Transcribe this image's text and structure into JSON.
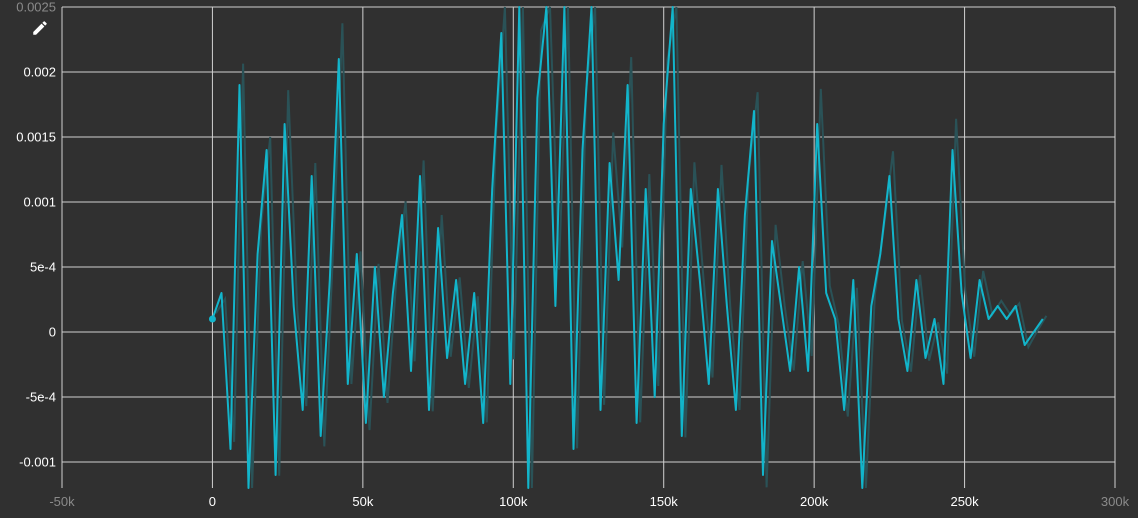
{
  "toolbar": {
    "edit_icon": "pencil-icon"
  },
  "chart_data": {
    "type": "line",
    "title": "",
    "xlabel": "",
    "ylabel": "",
    "xlim": [
      -50000,
      300000
    ],
    "ylim": [
      -0.0012,
      0.0025
    ],
    "x_ticks": [
      {
        "value": -50000,
        "label": "-50k"
      },
      {
        "value": 0,
        "label": "0"
      },
      {
        "value": 50000,
        "label": "50k"
      },
      {
        "value": 100000,
        "label": "100k"
      },
      {
        "value": 150000,
        "label": "150k"
      },
      {
        "value": 200000,
        "label": "200k"
      },
      {
        "value": 250000,
        "label": "250k"
      },
      {
        "value": 300000,
        "label": "300k"
      }
    ],
    "y_ticks": [
      {
        "value": 0.0025,
        "label": "0.0025"
      },
      {
        "value": 0.002,
        "label": "0.002"
      },
      {
        "value": 0.0015,
        "label": "0.0015"
      },
      {
        "value": 0.001,
        "label": "0.001"
      },
      {
        "value": 0.0005,
        "label": "5e-4"
      },
      {
        "value": 0,
        "label": "0"
      },
      {
        "value": -0.0005,
        "label": "-5e-4"
      },
      {
        "value": -0.001,
        "label": "-0.001"
      }
    ],
    "grid": true,
    "colors": {
      "series": "#12b5cb",
      "raw": "#2a5257",
      "grid": "#d0d0d0",
      "background": "#303030"
    },
    "series": [
      {
        "x": [
          0,
          3000,
          6000,
          9000,
          12000,
          15000,
          18000,
          21000,
          24000,
          27000,
          30000,
          33000,
          36000,
          39000,
          42000,
          45000,
          48000,
          51000,
          54000,
          57000,
          60000,
          63000,
          66000,
          69000,
          72000,
          75000,
          78000,
          81000,
          84000,
          87000,
          90000,
          93000,
          96000,
          99000,
          102000,
          105000,
          108000,
          111000,
          114000,
          117000,
          120000,
          123000,
          126000,
          129000,
          132000,
          135000,
          138000,
          141000,
          144000,
          147000,
          150000,
          153000,
          156000,
          159000,
          162000,
          165000,
          168000,
          171000,
          174000,
          177000,
          180000,
          183000,
          186000,
          189000,
          192000,
          195000,
          198000,
          201000,
          204000,
          207000,
          210000,
          213000,
          216000,
          219000,
          222000,
          225000,
          228000,
          231000,
          234000,
          237000,
          240000,
          243000,
          246000,
          249000,
          252000,
          255000,
          258000,
          261000,
          264000,
          267000,
          270000,
          273000,
          276000
        ],
        "y": [
          0.0001,
          0.0003,
          -0.0009,
          0.0019,
          -0.0012,
          0.0006,
          0.0014,
          -0.0011,
          0.0016,
          0.0002,
          -0.0006,
          0.0012,
          -0.0008,
          0.0004,
          0.0021,
          -0.0004,
          0.0006,
          -0.0007,
          0.0005,
          -0.0005,
          0.0003,
          0.0009,
          -0.0003,
          0.0012,
          -0.0006,
          0.0008,
          -0.0002,
          0.0004,
          -0.0004,
          0.0003,
          -0.0007,
          0.0011,
          0.0023,
          -0.0004,
          0.0025,
          -0.0012,
          0.0018,
          0.0025,
          0.0002,
          0.0025,
          -0.0009,
          0.0014,
          0.0025,
          -0.0006,
          0.0013,
          0.0004,
          0.0019,
          -0.0007,
          0.0011,
          -0.0005,
          0.0016,
          0.0025,
          -0.0008,
          0.0011,
          0.0004,
          -0.0004,
          0.0011,
          0.0002,
          -0.0006,
          0.0009,
          0.0017,
          -0.0011,
          0.0007,
          0.0002,
          -0.0003,
          0.0005,
          -0.0003,
          0.0016,
          0.0003,
          0.0001,
          -0.0006,
          0.0004,
          -0.0012,
          0.0002,
          0.0006,
          0.0012,
          0.0001,
          -0.0003,
          0.0004,
          -0.0002,
          0.0001,
          -0.0004,
          0.0014,
          0.0003,
          -0.0002,
          0.0004,
          0.0001,
          0.0002,
          0.0001,
          0.0002,
          -0.0001,
          0.0,
          0.0001
        ]
      }
    ]
  }
}
